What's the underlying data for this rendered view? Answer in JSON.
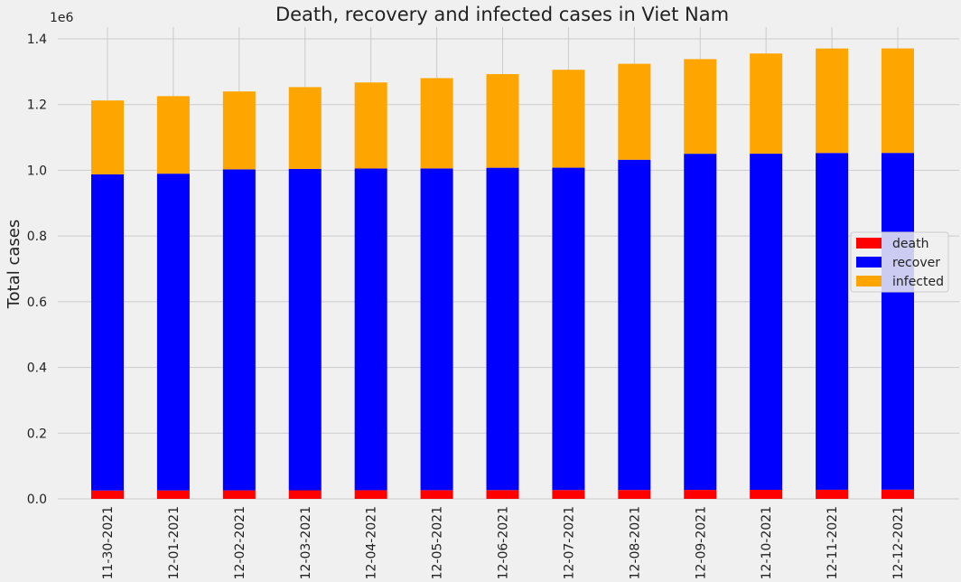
{
  "chart_data": {
    "type": "bar",
    "stacked": true,
    "title": "Death, recovery and infected cases in Viet Nam",
    "xlabel": "",
    "ylabel": "Total cases",
    "y_offset_label": "1e6",
    "ylim": [
      0,
      1.44
    ],
    "y_ticks": [
      0.0,
      0.2,
      0.4,
      0.6,
      0.8,
      1.0,
      1.2,
      1.4
    ],
    "y_tick_labels": [
      "0.0",
      "0.2",
      "0.4",
      "0.6",
      "0.8",
      "1.0",
      "1.2",
      "1.4"
    ],
    "grid": true,
    "legend_position": "center-right",
    "categories": [
      "11-30-2021",
      "12-01-2021",
      "12-02-2021",
      "12-03-2021",
      "12-04-2021",
      "12-05-2021",
      "12-06-2021",
      "12-07-2021",
      "12-08-2021",
      "12-09-2021",
      "12-10-2021",
      "12-11-2021",
      "12-12-2021"
    ],
    "series": [
      {
        "name": "death",
        "color": "#ff0000",
        "values": [
          0.0255,
          0.0257,
          0.0259,
          0.0261,
          0.0263,
          0.0265,
          0.0267,
          0.0269,
          0.0271,
          0.0273,
          0.0275,
          0.0277,
          0.0279
        ]
      },
      {
        "name": "recover",
        "color": "#0000ff",
        "values": [
          0.962,
          0.964,
          0.977,
          0.978,
          0.979,
          0.979,
          0.981,
          0.981,
          1.005,
          1.023,
          1.023,
          1.025,
          1.025
        ]
      },
      {
        "name": "infected",
        "color": "#ffa500",
        "values": [
          0.225,
          0.236,
          0.237,
          0.249,
          0.262,
          0.275,
          0.285,
          0.298,
          0.292,
          0.288,
          0.305,
          0.318,
          0.318
        ]
      }
    ]
  }
}
